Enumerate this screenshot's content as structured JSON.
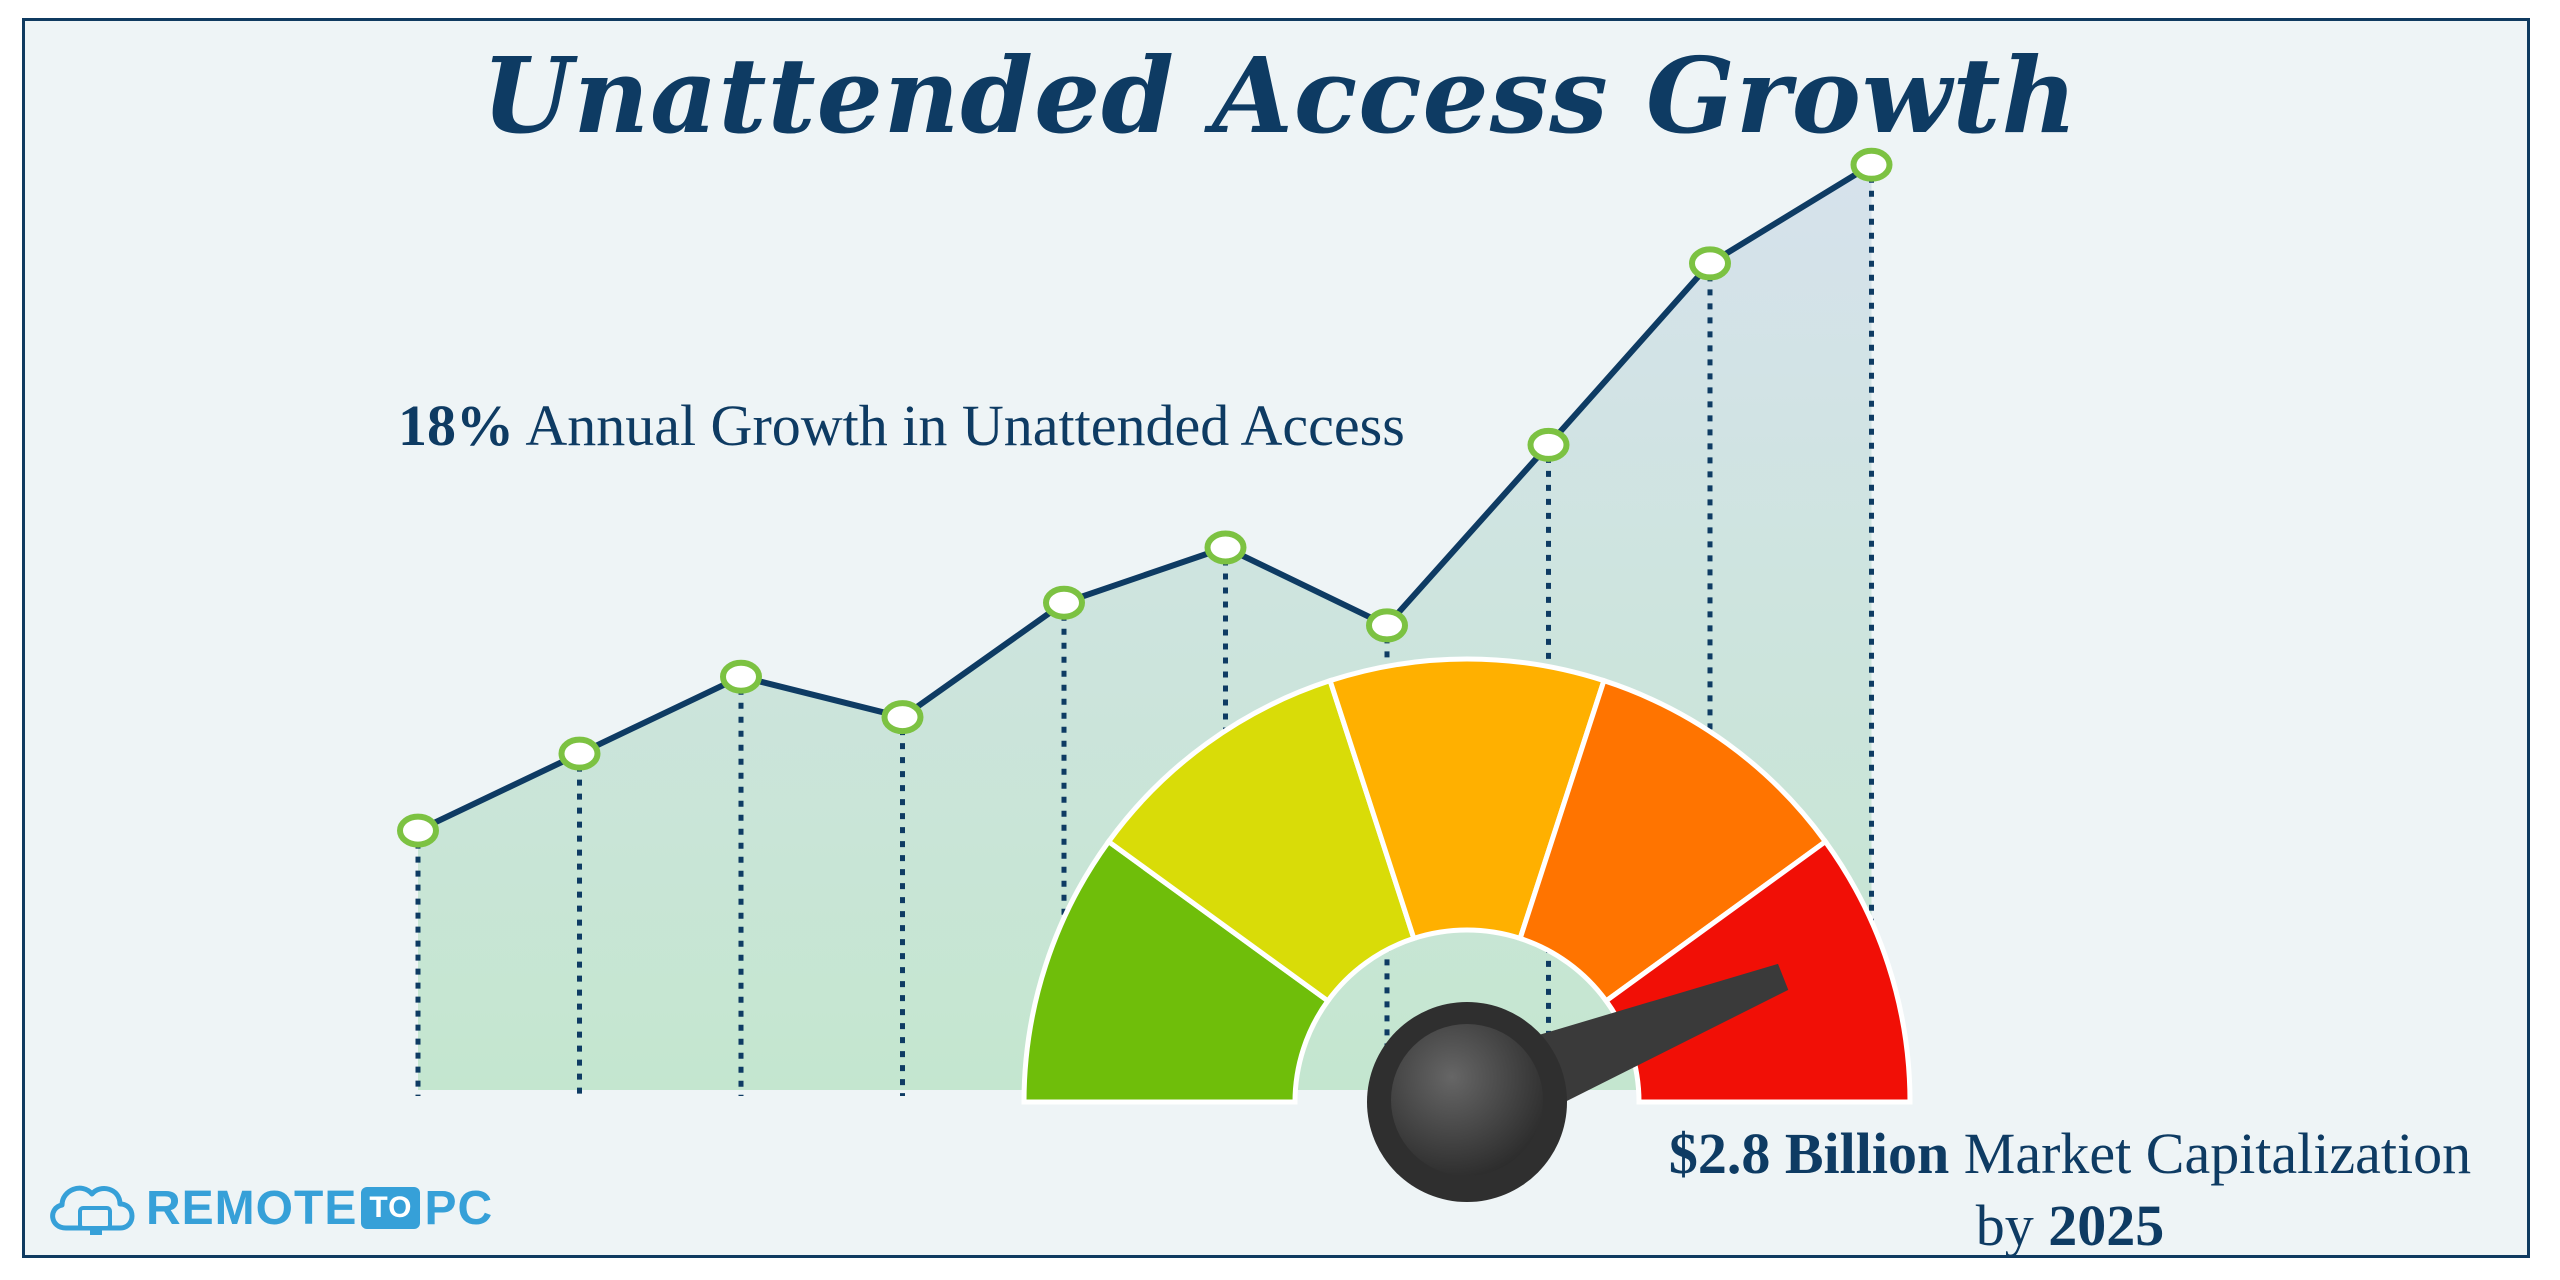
{
  "title": "Unattended Access Growth",
  "growth_annotation": {
    "value": "18%",
    "text": "Annual Growth in Unattended Access"
  },
  "market_annotation": {
    "value": "$2.8 Billion",
    "text": "Market Capitalization",
    "line2_prefix": "by",
    "year": "2025"
  },
  "logo": {
    "part1": "REMOTE",
    "part2": "TO",
    "part3": "PC",
    "icon": "cloud-computer-icon"
  },
  "colors": {
    "title": "#0e3b63",
    "line": "#0e3b63",
    "marker": "#7cc242",
    "gauge": [
      "#6fbe0a",
      "#d9dc08",
      "#ffb000",
      "#ff7400",
      "#f10f06"
    ],
    "needle": "#3a3a3a"
  },
  "chart_data": {
    "type": "line",
    "title": "Unattended Access Growth",
    "x": [
      1,
      2,
      3,
      4,
      5,
      6,
      7,
      8,
      9,
      10
    ],
    "values": [
      26.3,
      34.1,
      41.9,
      37.8,
      49.4,
      55.0,
      47.1,
      65.4,
      83.8,
      93.8
    ],
    "ylim": [
      0,
      110
    ],
    "grid": false,
    "markers": "hollow-circle",
    "drop_lines": "dotted",
    "fill": "gradient-area",
    "gauge": {
      "segments": 5,
      "needle_value": 0.88
    }
  }
}
